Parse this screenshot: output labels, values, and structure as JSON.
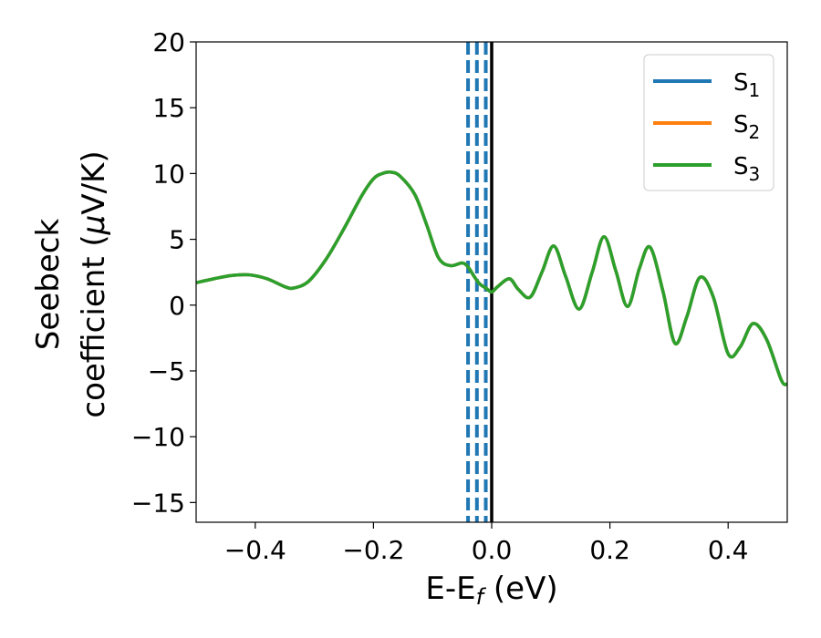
{
  "chart_data": {
    "type": "line",
    "title": "",
    "xlabel": "E-E",
    "xlabel_subscript": "f",
    "xlabel_suffix": " (eV)",
    "ylabel_line1": "Seebeck",
    "ylabel_line2": "coefficient  (",
    "ylabel_mu": "μ",
    "ylabel_line2_suffix": "V/K)",
    "xlim": [
      -0.5,
      0.5
    ],
    "ylim": [
      -16.5,
      20
    ],
    "xticks": [
      -0.4,
      -0.2,
      0.0,
      0.2,
      0.4
    ],
    "xtick_labels": [
      "−0.4",
      "−0.2",
      "0.0",
      "0.2",
      "0.4"
    ],
    "yticks": [
      -15,
      -10,
      -5,
      0,
      5,
      10,
      15,
      20
    ],
    "ytick_labels": [
      "−15",
      "−10",
      "−5",
      "0",
      "5",
      "10",
      "15",
      "20"
    ],
    "grid": false,
    "legend_position": "top-right",
    "series": [
      {
        "name": "S",
        "subscript": "1",
        "color": "#1f77b4"
      },
      {
        "name": "S",
        "subscript": "2",
        "color": "#ff7f0e"
      },
      {
        "name": "S",
        "subscript": "3",
        "color": "#2ca02c"
      }
    ],
    "x": [
      -0.5,
      -0.47,
      -0.44,
      -0.41,
      -0.38,
      -0.35,
      -0.335,
      -0.31,
      -0.28,
      -0.25,
      -0.22,
      -0.2,
      -0.185,
      -0.17,
      -0.155,
      -0.13,
      -0.11,
      -0.09,
      -0.07,
      -0.05,
      -0.04,
      -0.03,
      -0.02,
      -0.01,
      0.0,
      0.01,
      0.03,
      0.045,
      0.065,
      0.085,
      0.105,
      0.125,
      0.148,
      0.17,
      0.19,
      0.21,
      0.23,
      0.25,
      0.268,
      0.29,
      0.31,
      0.33,
      0.352,
      0.375,
      0.4,
      0.42,
      0.442,
      0.465,
      0.49,
      0.5
    ],
    "y": [
      1.7,
      2.0,
      2.25,
      2.3,
      2.0,
      1.4,
      1.3,
      1.8,
      3.5,
      5.8,
      8.3,
      9.6,
      10.0,
      10.1,
      9.8,
      8.4,
      6.1,
      3.6,
      3.0,
      3.2,
      2.9,
      2.2,
      1.6,
      1.3,
      1.0,
      1.4,
      2.0,
      1.2,
      0.6,
      2.5,
      4.5,
      2.2,
      -0.3,
      2.5,
      5.2,
      2.6,
      -0.1,
      2.8,
      4.4,
      1.0,
      -2.9,
      -0.9,
      2.1,
      0.6,
      -3.7,
      -3.2,
      -1.4,
      -2.6,
      -5.7,
      -6.0
    ],
    "vlines_dashed": [
      -0.04,
      -0.025,
      -0.01
    ],
    "vlines_dashed_color": "#1f77b4",
    "vline_solid": 0.0,
    "vline_solid_color": "#000000"
  }
}
